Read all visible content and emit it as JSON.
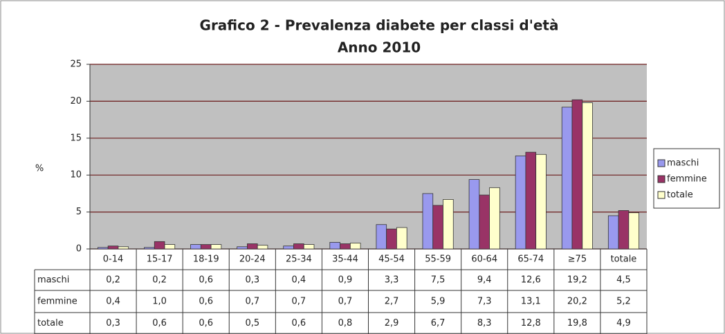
{
  "chart_data": {
    "type": "bar",
    "title": "Grafico 2 - Prevalenza diabete per classi d'età",
    "subtitle": "Anno 2010",
    "y_label": "%",
    "categories": [
      "0-14",
      "15-17",
      "18-19",
      "20-24",
      "25-34",
      "35-44",
      "45-54",
      "55-59",
      "60-64",
      "65-74",
      "≥75",
      "totale"
    ],
    "series": [
      {
        "name": "maschi",
        "color": "#9999ee",
        "values": [
          0.2,
          0.2,
          0.6,
          0.3,
          0.4,
          0.9,
          3.3,
          7.5,
          9.4,
          12.6,
          19.2,
          4.5
        ],
        "value_labels": [
          "0,2",
          "0,2",
          "0,6",
          "0,3",
          "0,4",
          "0,9",
          "3,3",
          "7,5",
          "9,4",
          "12,6",
          "19,2",
          "4,5"
        ]
      },
      {
        "name": "femmine",
        "color": "#993366",
        "values": [
          0.4,
          1.0,
          0.6,
          0.7,
          0.7,
          0.7,
          2.7,
          5.9,
          7.3,
          13.1,
          20.2,
          5.2
        ],
        "value_labels": [
          "0,4",
          "1,0",
          "0,6",
          "0,7",
          "0,7",
          "0,7",
          "2,7",
          "5,9",
          "7,3",
          "13,1",
          "20,2",
          "5,2"
        ]
      },
      {
        "name": "totale",
        "color": "#ffffcc",
        "values": [
          0.3,
          0.6,
          0.6,
          0.5,
          0.6,
          0.8,
          2.9,
          6.7,
          8.3,
          12.8,
          19.8,
          4.9
        ],
        "value_labels": [
          "0,3",
          "0,6",
          "0,6",
          "0,5",
          "0,6",
          "0,8",
          "2,9",
          "6,7",
          "8,3",
          "12,8",
          "19,8",
          "4,9"
        ]
      }
    ],
    "ylim": [
      0,
      25
    ],
    "yticks": [
      0,
      5,
      10,
      15,
      20,
      25
    ],
    "grid": true,
    "legend": "right"
  }
}
